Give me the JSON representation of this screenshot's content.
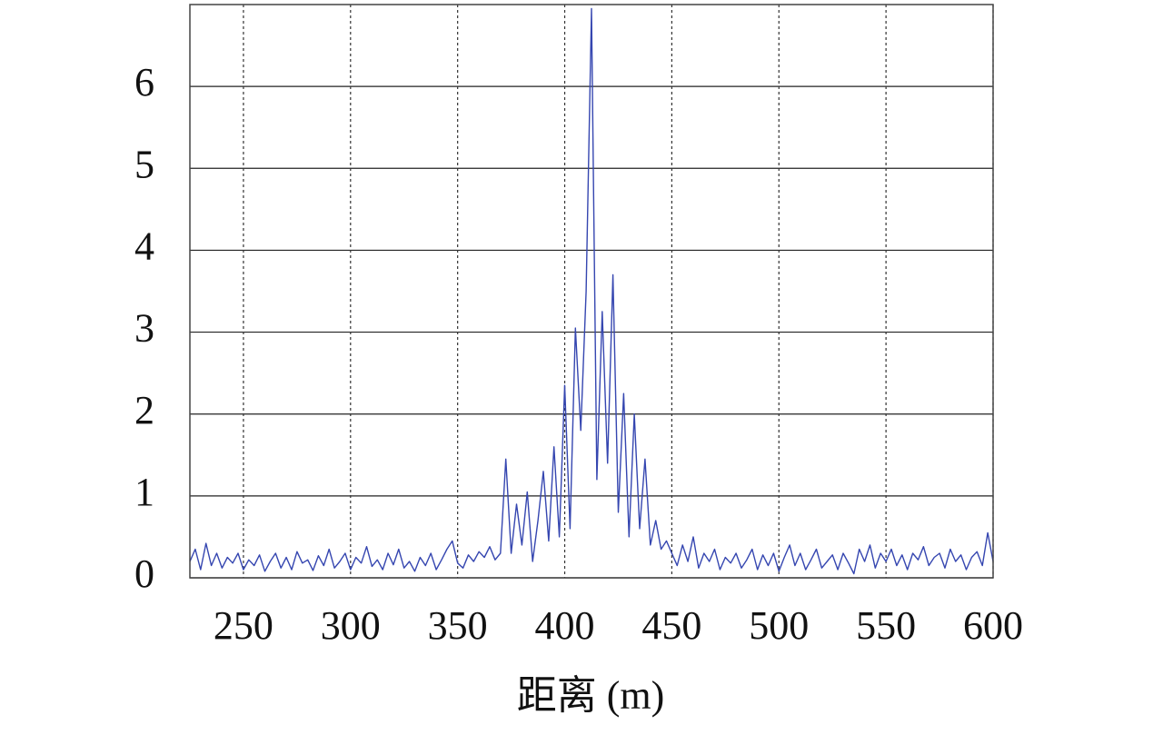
{
  "chart_data": {
    "type": "line",
    "x_label": "距离 (m)",
    "x": [
      225,
      227.5,
      230,
      232.5,
      235,
      237.5,
      240,
      242.5,
      245,
      247.5,
      250,
      252.5,
      255,
      257.5,
      260,
      262.5,
      265,
      267.5,
      270,
      272.5,
      275,
      277.5,
      280,
      282.5,
      285,
      287.5,
      290,
      292.5,
      295,
      297.5,
      300,
      302.5,
      305,
      307.5,
      310,
      312.5,
      315,
      317.5,
      320,
      322.5,
      325,
      327.5,
      330,
      332.5,
      335,
      337.5,
      340,
      342.5,
      345,
      347.5,
      350,
      352.5,
      355,
      357.5,
      360,
      362.5,
      365,
      367.5,
      370,
      372.5,
      375,
      377.5,
      380,
      382.5,
      385,
      387.5,
      390,
      392.5,
      395,
      397.5,
      400,
      402.5,
      405,
      407.5,
      410,
      412.5,
      415,
      417.5,
      420,
      422.5,
      425,
      427.5,
      430,
      432.5,
      435,
      437.5,
      440,
      442.5,
      445,
      447.5,
      450,
      452.5,
      455,
      457.5,
      460,
      462.5,
      465,
      467.5,
      470,
      472.5,
      475,
      477.5,
      480,
      482.5,
      485,
      487.5,
      490,
      492.5,
      495,
      497.5,
      500,
      502.5,
      505,
      507.5,
      510,
      512.5,
      515,
      517.5,
      520,
      522.5,
      525,
      527.5,
      530,
      532.5,
      535,
      537.5,
      540,
      542.5,
      545,
      547.5,
      550,
      552.5,
      555,
      557.5,
      560,
      562.5,
      565,
      567.5,
      570,
      572.5,
      575,
      577.5,
      580,
      582.5,
      585,
      587.5,
      590,
      592.5,
      595,
      597.5,
      600
    ],
    "series": [
      {
        "color": "#3546b0",
        "values": [
          0.2,
          0.35,
          0.1,
          0.42,
          0.15,
          0.3,
          0.12,
          0.25,
          0.18,
          0.3,
          0.1,
          0.22,
          0.15,
          0.28,
          0.08,
          0.2,
          0.3,
          0.12,
          0.25,
          0.1,
          0.32,
          0.18,
          0.22,
          0.09,
          0.27,
          0.15,
          0.35,
          0.12,
          0.2,
          0.3,
          0.1,
          0.25,
          0.18,
          0.38,
          0.14,
          0.22,
          0.1,
          0.3,
          0.16,
          0.35,
          0.12,
          0.2,
          0.08,
          0.25,
          0.15,
          0.3,
          0.1,
          0.22,
          0.35,
          0.45,
          0.18,
          0.12,
          0.28,
          0.2,
          0.32,
          0.25,
          0.38,
          0.22,
          0.3,
          1.45,
          0.3,
          0.9,
          0.4,
          1.05,
          0.2,
          0.7,
          1.3,
          0.45,
          1.6,
          0.5,
          2.35,
          0.6,
          3.05,
          1.8,
          3.5,
          6.95,
          1.2,
          3.25,
          1.4,
          3.7,
          0.8,
          2.25,
          0.5,
          2.0,
          0.6,
          1.45,
          0.4,
          0.7,
          0.35,
          0.45,
          0.3,
          0.15,
          0.4,
          0.2,
          0.5,
          0.12,
          0.3,
          0.2,
          0.35,
          0.1,
          0.25,
          0.18,
          0.3,
          0.12,
          0.22,
          0.35,
          0.1,
          0.28,
          0.15,
          0.3,
          0.08,
          0.25,
          0.4,
          0.15,
          0.3,
          0.1,
          0.22,
          0.35,
          0.12,
          0.2,
          0.28,
          0.1,
          0.3,
          0.18,
          0.05,
          0.35,
          0.2,
          0.4,
          0.12,
          0.3,
          0.2,
          0.35,
          0.15,
          0.28,
          0.1,
          0.3,
          0.22,
          0.38,
          0.15,
          0.25,
          0.3,
          0.12,
          0.35,
          0.2,
          0.28,
          0.1,
          0.25,
          0.32,
          0.15,
          0.55,
          0.2
        ]
      }
    ],
    "xlim": [
      225,
      600
    ],
    "xticks": [
      250,
      300,
      350,
      400,
      450,
      500,
      550,
      600
    ],
    "ylim": [
      0,
      7
    ],
    "yticks": [
      0,
      1,
      2,
      3,
      4,
      5,
      6
    ],
    "grid": true
  }
}
